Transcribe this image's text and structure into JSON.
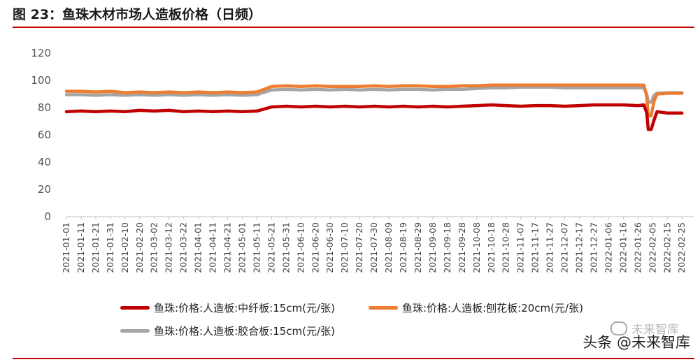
{
  "figure": {
    "title": "图 23：鱼珠木材市场人造板价格（日频）"
  },
  "watermark": {
    "ghost": "未来智库",
    "text": "头条 @未来智库"
  },
  "colors": {
    "rule": "#c00000",
    "series_red": "#c00000",
    "series_orange": "#ed7d31",
    "series_gray": "#a5a5a5"
  },
  "chart_data": {
    "type": "line",
    "title": "",
    "xlabel": "",
    "ylabel": "",
    "ylim": [
      0,
      120
    ],
    "yticks": [
      0,
      20,
      40,
      60,
      80,
      100,
      120
    ],
    "grid": false,
    "legend_position": "bottom",
    "x_tick_labels": [
      "2021-01-01",
      "2021-01-11",
      "2021-01-21",
      "2021-01-31",
      "2021-02-10",
      "2021-02-20",
      "2021-03-02",
      "2021-03-12",
      "2021-03-22",
      "2021-04-01",
      "2021-04-11",
      "2021-04-21",
      "2021-05-01",
      "2021-05-11",
      "2021-05-21",
      "2021-05-31",
      "2021-06-10",
      "2021-06-20",
      "2021-06-30",
      "2021-07-10",
      "2021-07-20",
      "2021-07-30",
      "2021-08-09",
      "2021-08-19",
      "2021-08-29",
      "2021-09-08",
      "2021-09-18",
      "2021-09-28",
      "2021-10-08",
      "2021-10-18",
      "2021-10-28",
      "2021-11-07",
      "2021-11-17",
      "2021-11-27",
      "2021-12-07",
      "2021-12-17",
      "2021-12-27",
      "2022-01-06",
      "2022-01-16",
      "2022-01-26",
      "2022-02-05",
      "2022-02-15",
      "2022-02-25"
    ],
    "series": [
      {
        "name": "鱼珠:价格:人造板:中纤板:15cm(元/张)",
        "color": "#c00000",
        "points": [
          [
            "2021-01-01",
            77
          ],
          [
            "2021-01-11",
            77.5
          ],
          [
            "2021-01-21",
            77
          ],
          [
            "2021-01-31",
            77.5
          ],
          [
            "2021-02-10",
            77
          ],
          [
            "2021-02-20",
            78
          ],
          [
            "2021-03-02",
            77.5
          ],
          [
            "2021-03-12",
            78
          ],
          [
            "2021-03-22",
            77
          ],
          [
            "2021-04-01",
            77.5
          ],
          [
            "2021-04-11",
            77
          ],
          [
            "2021-04-21",
            77.5
          ],
          [
            "2021-05-01",
            77
          ],
          [
            "2021-05-11",
            77.5
          ],
          [
            "2021-05-21",
            80.5
          ],
          [
            "2021-05-31",
            81
          ],
          [
            "2021-06-10",
            80.5
          ],
          [
            "2021-06-20",
            81
          ],
          [
            "2021-06-30",
            80.5
          ],
          [
            "2021-07-10",
            81
          ],
          [
            "2021-07-20",
            80.5
          ],
          [
            "2021-07-30",
            81
          ],
          [
            "2021-08-09",
            80.5
          ],
          [
            "2021-08-19",
            81
          ],
          [
            "2021-08-29",
            80.5
          ],
          [
            "2021-09-08",
            81
          ],
          [
            "2021-09-18",
            80.5
          ],
          [
            "2021-09-28",
            81
          ],
          [
            "2021-10-08",
            81.5
          ],
          [
            "2021-10-18",
            82
          ],
          [
            "2021-10-28",
            81.5
          ],
          [
            "2021-11-07",
            81
          ],
          [
            "2021-11-17",
            81.5
          ],
          [
            "2021-11-27",
            81.5
          ],
          [
            "2021-12-07",
            81
          ],
          [
            "2021-12-17",
            81.5
          ],
          [
            "2021-12-27",
            82
          ],
          [
            "2022-01-06",
            82
          ],
          [
            "2022-01-16",
            82
          ],
          [
            "2022-01-26",
            81.5
          ],
          [
            "2022-01-30",
            82
          ],
          [
            "2022-02-01",
            76
          ],
          [
            "2022-02-02",
            64
          ],
          [
            "2022-02-04",
            64
          ],
          [
            "2022-02-06",
            71
          ],
          [
            "2022-02-08",
            77
          ],
          [
            "2022-02-15",
            76
          ],
          [
            "2022-02-25",
            76
          ]
        ]
      },
      {
        "name": "鱼珠:价格:人造板:刨花板:20cm(元/张)",
        "color": "#ed7d31",
        "points": [
          [
            "2021-01-01",
            92
          ],
          [
            "2021-01-11",
            92
          ],
          [
            "2021-01-21",
            91.5
          ],
          [
            "2021-01-31",
            92
          ],
          [
            "2021-02-10",
            91
          ],
          [
            "2021-02-20",
            91.5
          ],
          [
            "2021-03-02",
            91
          ],
          [
            "2021-03-12",
            91.5
          ],
          [
            "2021-03-22",
            91
          ],
          [
            "2021-04-01",
            91.5
          ],
          [
            "2021-04-11",
            91
          ],
          [
            "2021-04-21",
            91.5
          ],
          [
            "2021-05-01",
            91
          ],
          [
            "2021-05-11",
            91.5
          ],
          [
            "2021-05-21",
            95.5
          ],
          [
            "2021-05-31",
            96
          ],
          [
            "2021-06-10",
            95.5
          ],
          [
            "2021-06-20",
            96
          ],
          [
            "2021-06-30",
            95.5
          ],
          [
            "2021-07-10",
            95.5
          ],
          [
            "2021-07-20",
            95.5
          ],
          [
            "2021-07-30",
            96
          ],
          [
            "2021-08-09",
            95.5
          ],
          [
            "2021-08-19",
            96
          ],
          [
            "2021-08-29",
            96
          ],
          [
            "2021-09-08",
            95.5
          ],
          [
            "2021-09-18",
            95.5
          ],
          [
            "2021-09-28",
            96
          ],
          [
            "2021-10-08",
            96
          ],
          [
            "2021-10-18",
            96.5
          ],
          [
            "2021-10-28",
            96.5
          ],
          [
            "2021-11-07",
            96.5
          ],
          [
            "2021-11-17",
            96.5
          ],
          [
            "2021-11-27",
            96.5
          ],
          [
            "2021-12-07",
            96.5
          ],
          [
            "2021-12-17",
            96.5
          ],
          [
            "2021-12-27",
            96.5
          ],
          [
            "2022-01-06",
            96.5
          ],
          [
            "2022-01-16",
            96.5
          ],
          [
            "2022-01-26",
            96.5
          ],
          [
            "2022-01-30",
            96.5
          ],
          [
            "2022-02-01",
            88
          ],
          [
            "2022-02-02",
            74
          ],
          [
            "2022-02-04",
            74
          ],
          [
            "2022-02-06",
            85
          ],
          [
            "2022-02-08",
            90
          ],
          [
            "2022-02-15",
            90.5
          ],
          [
            "2022-02-25",
            90.5
          ]
        ]
      },
      {
        "name": "鱼珠:价格:人造板:胶合板:15cm(元/张)",
        "color": "#a5a5a5",
        "points": [
          [
            "2021-01-01",
            89.5
          ],
          [
            "2021-01-11",
            89.5
          ],
          [
            "2021-01-21",
            89
          ],
          [
            "2021-01-31",
            89.5
          ],
          [
            "2021-02-10",
            89
          ],
          [
            "2021-02-20",
            89.5
          ],
          [
            "2021-03-02",
            89
          ],
          [
            "2021-03-12",
            89.5
          ],
          [
            "2021-03-22",
            89
          ],
          [
            "2021-04-01",
            89.5
          ],
          [
            "2021-04-11",
            89
          ],
          [
            "2021-04-21",
            89.5
          ],
          [
            "2021-05-01",
            89
          ],
          [
            "2021-05-11",
            89.5
          ],
          [
            "2021-05-21",
            93
          ],
          [
            "2021-05-31",
            93.5
          ],
          [
            "2021-06-10",
            93
          ],
          [
            "2021-06-20",
            93.5
          ],
          [
            "2021-06-30",
            93
          ],
          [
            "2021-07-10",
            93.5
          ],
          [
            "2021-07-20",
            93
          ],
          [
            "2021-07-30",
            93.5
          ],
          [
            "2021-08-09",
            93
          ],
          [
            "2021-08-19",
            93.5
          ],
          [
            "2021-08-29",
            93.5
          ],
          [
            "2021-09-08",
            93
          ],
          [
            "2021-09-18",
            93.5
          ],
          [
            "2021-09-28",
            93.5
          ],
          [
            "2021-10-08",
            94
          ],
          [
            "2021-10-18",
            94.5
          ],
          [
            "2021-10-28",
            94.5
          ],
          [
            "2021-11-07",
            95
          ],
          [
            "2021-11-17",
            95
          ],
          [
            "2021-11-27",
            95
          ],
          [
            "2021-12-07",
            94.5
          ],
          [
            "2021-12-17",
            94.5
          ],
          [
            "2021-12-27",
            94.5
          ],
          [
            "2022-01-06",
            94.5
          ],
          [
            "2022-01-16",
            94.5
          ],
          [
            "2022-01-26",
            94.5
          ],
          [
            "2022-01-30",
            94.5
          ],
          [
            "2022-02-01",
            90
          ],
          [
            "2022-02-02",
            84
          ],
          [
            "2022-02-04",
            84
          ],
          [
            "2022-02-06",
            89
          ],
          [
            "2022-02-08",
            90.5
          ],
          [
            "2022-02-15",
            91
          ],
          [
            "2022-02-25",
            91
          ]
        ]
      }
    ]
  }
}
